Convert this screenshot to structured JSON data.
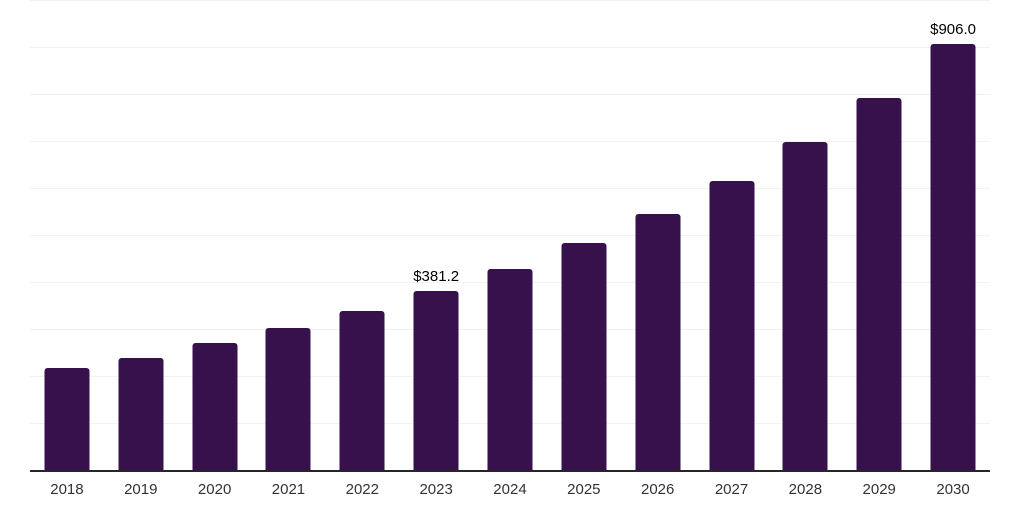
{
  "style": {
    "background_color": "#ffffff",
    "bar_color": "#36114c",
    "gridline_color": "#f2f2f2",
    "axis_line_color": "#262626",
    "data_label_color": "#000000",
    "tick_label_color": "#333333"
  },
  "chart_data": {
    "type": "bar",
    "title": "",
    "xlabel": "",
    "ylabel": "",
    "categories": [
      "2018",
      "2019",
      "2020",
      "2021",
      "2022",
      "2023",
      "2024",
      "2025",
      "2026",
      "2027",
      "2028",
      "2029",
      "2030"
    ],
    "values": [
      218,
      239,
      271,
      302,
      339,
      381.2,
      428,
      482,
      545,
      614,
      697,
      791,
      906
    ],
    "data_labels": {
      "2023": "$381.2",
      "2030": "$906.0"
    },
    "ylim": [
      0,
      1000
    ],
    "gridline_interval": 100,
    "grid": "horizontal",
    "legend": "none",
    "y_axis_tick_labels_visible": false
  }
}
